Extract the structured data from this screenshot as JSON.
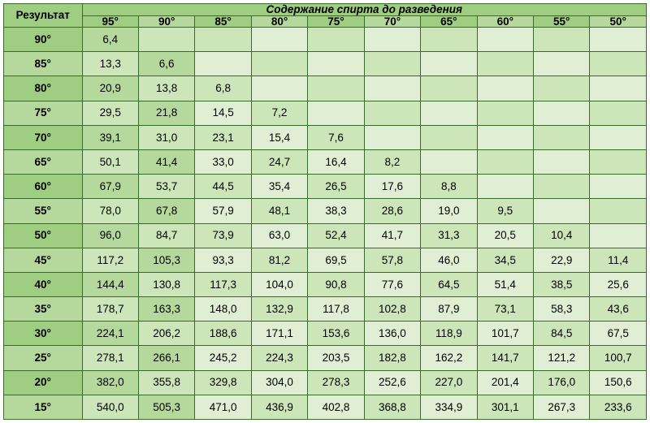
{
  "headers": {
    "rowTitle": "Результат",
    "spanTitle": "Содержание спирта до разведения",
    "cols": [
      "95°",
      "90°",
      "85°",
      "80°",
      "75°",
      "70°",
      "65°",
      "60°",
      "55°",
      "50°"
    ]
  },
  "rows": [
    {
      "label": "90°",
      "cells": [
        "6,4",
        "",
        "",
        "",
        "",
        "",
        "",
        "",
        "",
        ""
      ]
    },
    {
      "label": "85°",
      "cells": [
        "13,3",
        "6,6",
        "",
        "",
        "",
        "",
        "",
        "",
        "",
        ""
      ]
    },
    {
      "label": "80°",
      "cells": [
        "20,9",
        "13,8",
        "6,8",
        "",
        "",
        "",
        "",
        "",
        "",
        ""
      ]
    },
    {
      "label": "75°",
      "cells": [
        "29,5",
        "21,8",
        "14,5",
        "7,2",
        "",
        "",
        "",
        "",
        "",
        ""
      ]
    },
    {
      "label": "70°",
      "cells": [
        "39,1",
        "31,0",
        "23,1",
        "15,4",
        "7,6",
        "",
        "",
        "",
        "",
        ""
      ]
    },
    {
      "label": "65°",
      "cells": [
        "50,1",
        "41,4",
        "33,0",
        "24,7",
        "16,4",
        "8,2",
        "",
        "",
        "",
        ""
      ]
    },
    {
      "label": "60°",
      "cells": [
        "67,9",
        "53,7",
        "44,5",
        "35,4",
        "26,5",
        "17,6",
        "8,8",
        "",
        "",
        ""
      ]
    },
    {
      "label": "55°",
      "cells": [
        "78,0",
        "67,8",
        "57,9",
        "48,1",
        "38,3",
        "28,6",
        "19,0",
        "9,5",
        "",
        ""
      ]
    },
    {
      "label": "50°",
      "cells": [
        "96,0",
        "84,7",
        "73,9",
        "63,0",
        "52,4",
        "41,7",
        "31,3",
        "20,5",
        "10,4",
        ""
      ]
    },
    {
      "label": "45°",
      "cells": [
        "117,2",
        "105,3",
        "93,3",
        "81,2",
        "69,5",
        "57,8",
        "46,0",
        "34,5",
        "22,9",
        "11,4"
      ]
    },
    {
      "label": "40°",
      "cells": [
        "144,4",
        "130,8",
        "117,3",
        "104,0",
        "90,8",
        "77,6",
        "64,5",
        "51,4",
        "38,5",
        "25,6"
      ]
    },
    {
      "label": "35°",
      "cells": [
        "178,7",
        "163,3",
        "148,0",
        "132,9",
        "117,8",
        "102,8",
        "87,9",
        "73,1",
        "58,3",
        "43,6"
      ]
    },
    {
      "label": "30°",
      "cells": [
        "224,1",
        "206,2",
        "188,6",
        "171,1",
        "153,6",
        "136,0",
        "118,9",
        "101,7",
        "84,5",
        "67,5"
      ]
    },
    {
      "label": "25°",
      "cells": [
        "278,1",
        "266,1",
        "245,2",
        "224,3",
        "203,5",
        "182,8",
        "162,2",
        "141,7",
        "121,2",
        "100,7"
      ]
    },
    {
      "label": "20°",
      "cells": [
        "382,0",
        "355,8",
        "329,8",
        "304,0",
        "278,3",
        "252,6",
        "227,0",
        "201,4",
        "176,0",
        "150,6"
      ]
    },
    {
      "label": "15°",
      "cells": [
        "540,0",
        "505,3",
        "471,0",
        "436,9",
        "402,8",
        "368,8",
        "334,9",
        "301,1",
        "267,3",
        "233,6"
      ]
    }
  ],
  "shades": [
    "c-dark",
    "c-med",
    "c-light",
    "c-pale"
  ]
}
